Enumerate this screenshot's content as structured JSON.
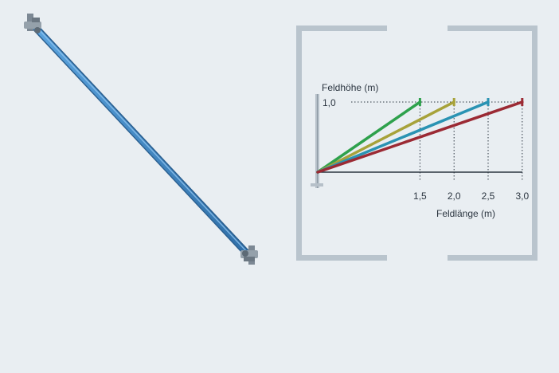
{
  "diagram": {
    "y_axis_title": "Feldhöhe (m)",
    "x_axis_title": "Feldlänge (m)",
    "y_tick_label": "1,0",
    "x_tick_labels": [
      "1,5",
      "2,0",
      "2,5",
      "3,0"
    ],
    "colors": {
      "background": "#e9eef2",
      "frame": "#b9c4cd",
      "axis": "#2b3540",
      "brace_main": "#3f86c4"
    },
    "braces": [
      {
        "field_length": "1,5",
        "field_height": "1,0",
        "color": "#2ea14c"
      },
      {
        "field_length": "2,0",
        "field_height": "1,0",
        "color": "#a7a23a"
      },
      {
        "field_length": "2,5",
        "field_height": "1,0",
        "color": "#2a93b3"
      },
      {
        "field_length": "3,0",
        "field_height": "1,0",
        "color": "#9b2a34"
      }
    ]
  }
}
